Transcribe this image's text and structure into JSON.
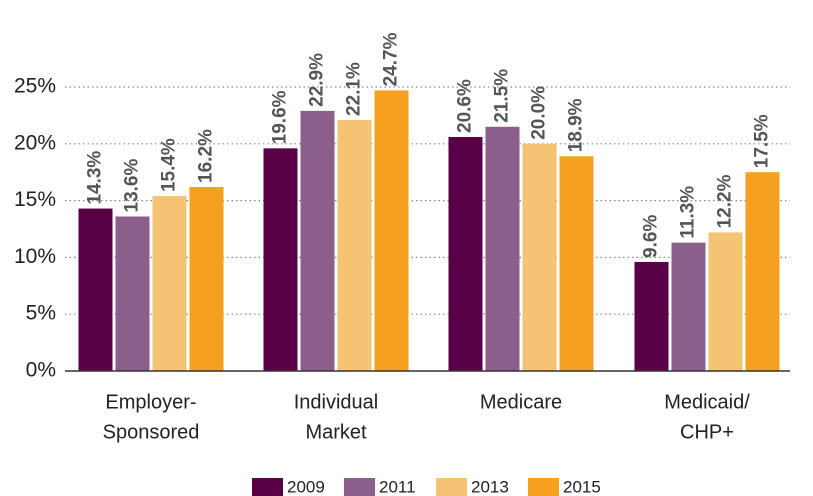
{
  "chart_data": {
    "type": "bar",
    "categories": [
      [
        "Employer-",
        "Sponsored"
      ],
      [
        "Individual",
        "Market"
      ],
      [
        "Medicare"
      ],
      [
        "Medicaid/",
        "CHP+"
      ]
    ],
    "series": [
      {
        "name": "2009",
        "color": "#5a0046",
        "values": [
          14.3,
          19.6,
          20.6,
          9.6
        ],
        "value_labels": [
          "14.3%",
          "19.6%",
          "20.6%",
          "9.6%"
        ]
      },
      {
        "name": "2011",
        "color": "#8c5e8c",
        "values": [
          13.6,
          22.9,
          21.5,
          11.3
        ],
        "value_labels": [
          "13.6%",
          "22.9%",
          "21.5%",
          "11.3%"
        ]
      },
      {
        "name": "2013",
        "color": "#f5c374",
        "values": [
          15.4,
          22.1,
          20.0,
          12.2
        ],
        "value_labels": [
          "15.4%",
          "22.1%",
          "20.0%",
          "12.2%"
        ]
      },
      {
        "name": "2015",
        "color": "#f5a01e",
        "values": [
          16.2,
          24.7,
          18.9,
          17.5
        ],
        "value_labels": [
          "16.2%",
          "24.7%",
          "18.9%",
          "17.5%"
        ]
      }
    ],
    "ylim": [
      0,
      25
    ],
    "yticks": [
      {
        "value": 0,
        "label": "0%"
      },
      {
        "value": 5,
        "label": "5%"
      },
      {
        "value": 10,
        "label": "10%"
      },
      {
        "value": 15,
        "label": "15%"
      },
      {
        "value": 20,
        "label": "20%"
      },
      {
        "value": 25,
        "label": "25%"
      }
    ],
    "grid": true
  }
}
